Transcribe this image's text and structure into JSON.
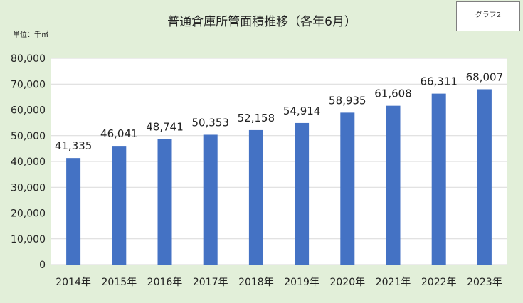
{
  "badge_label": "グラフ2",
  "unit_label": "単位：千㎡",
  "chart_data": {
    "type": "bar",
    "title": "普通倉庫所管面積推移（各年6月）",
    "categories": [
      "2014年",
      "2015年",
      "2016年",
      "2017年",
      "2018年",
      "2019年",
      "2020年",
      "2021年",
      "2022年",
      "2023年"
    ],
    "values": [
      41335,
      46041,
      48741,
      50353,
      52158,
      54914,
      58935,
      61608,
      66311,
      68007
    ],
    "value_labels": [
      "41,335",
      "46,041",
      "48,741",
      "50,353",
      "52,158",
      "54,914",
      "58,935",
      "61,608",
      "66,311",
      "68,007"
    ],
    "y_ticks": [
      0,
      10000,
      20000,
      30000,
      40000,
      50000,
      60000,
      70000,
      80000
    ],
    "y_tick_labels": [
      "0",
      "10,000",
      "20,000",
      "30,000",
      "40,000",
      "50,000",
      "60,000",
      "70,000",
      "80,000"
    ],
    "ylim": [
      0,
      80000
    ],
    "grid": true,
    "legend": "none",
    "bar_color": "#4472c4",
    "plot_bg": "#ffffff",
    "grid_color": "#d9d9d9"
  }
}
